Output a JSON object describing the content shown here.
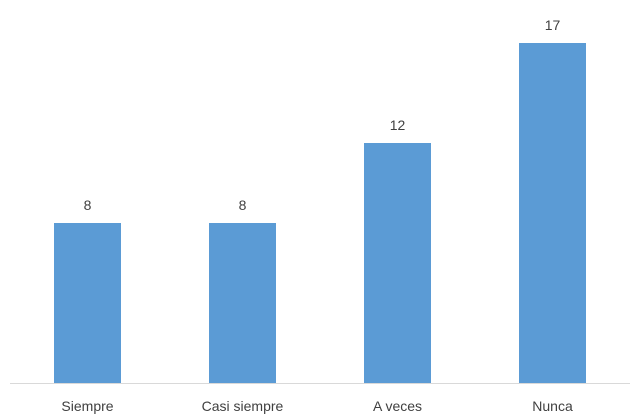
{
  "chart_data": {
    "type": "bar",
    "categories": [
      "Siempre",
      "Casi siempre",
      "A veces",
      "Nunca"
    ],
    "values": [
      8,
      8,
      12,
      17
    ],
    "title": "",
    "xlabel": "",
    "ylabel": "",
    "ylim": [
      0,
      17
    ],
    "grid": false,
    "legend": "none",
    "data_labels": true,
    "bar_color": "#5b9bd5",
    "axis_color": "#d9d9d9",
    "label_color": "#404040"
  }
}
